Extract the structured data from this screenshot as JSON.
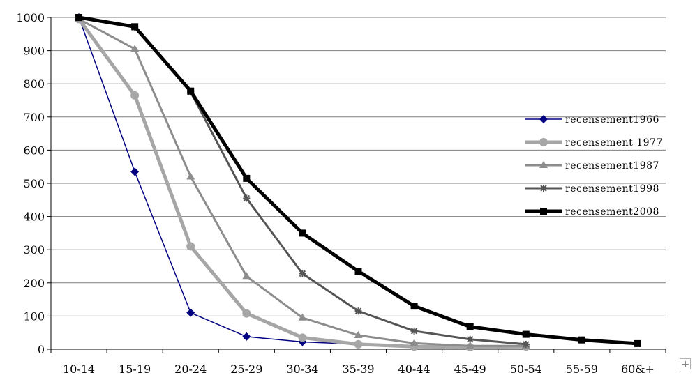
{
  "chart_data": {
    "type": "line",
    "categories": [
      "10-14",
      "15-19",
      "20-24",
      "25-29",
      "30-34",
      "35-39",
      "40-44",
      "45-49",
      "50-54",
      "55-59",
      "60&+"
    ],
    "ylim": [
      0,
      1000
    ],
    "yticks": [
      0,
      100,
      200,
      300,
      400,
      500,
      600,
      700,
      800,
      900,
      1000
    ],
    "grid": true,
    "legend_position": "right",
    "series": [
      {
        "name": "recensement1966",
        "color": "#000080",
        "marker": "diamond",
        "width": 1.5,
        "values": [
          1000,
          535,
          110,
          38,
          22,
          15,
          null,
          null,
          null,
          null,
          null
        ]
      },
      {
        "name": "recensement 1977",
        "color": "#a6a6a6",
        "marker": "circle",
        "width": 5,
        "values": [
          995,
          765,
          310,
          108,
          35,
          15,
          8,
          6,
          8,
          null,
          null
        ]
      },
      {
        "name": "recensement1987",
        "color": "#8c8c8c",
        "marker": "triangle",
        "width": 3,
        "values": [
          995,
          905,
          520,
          220,
          95,
          42,
          18,
          10,
          10,
          null,
          null
        ]
      },
      {
        "name": "recensement1998",
        "color": "#555555",
        "marker": "star",
        "width": 3,
        "values": [
          1000,
          970,
          775,
          455,
          228,
          115,
          55,
          30,
          15,
          null,
          null
        ]
      },
      {
        "name": "recensement2008",
        "color": "#000000",
        "marker": "square",
        "width": 5,
        "values": [
          1000,
          972,
          778,
          515,
          350,
          235,
          130,
          68,
          45,
          28,
          17
        ]
      }
    ]
  },
  "ui": {
    "expand_icon": "plus-icon"
  }
}
